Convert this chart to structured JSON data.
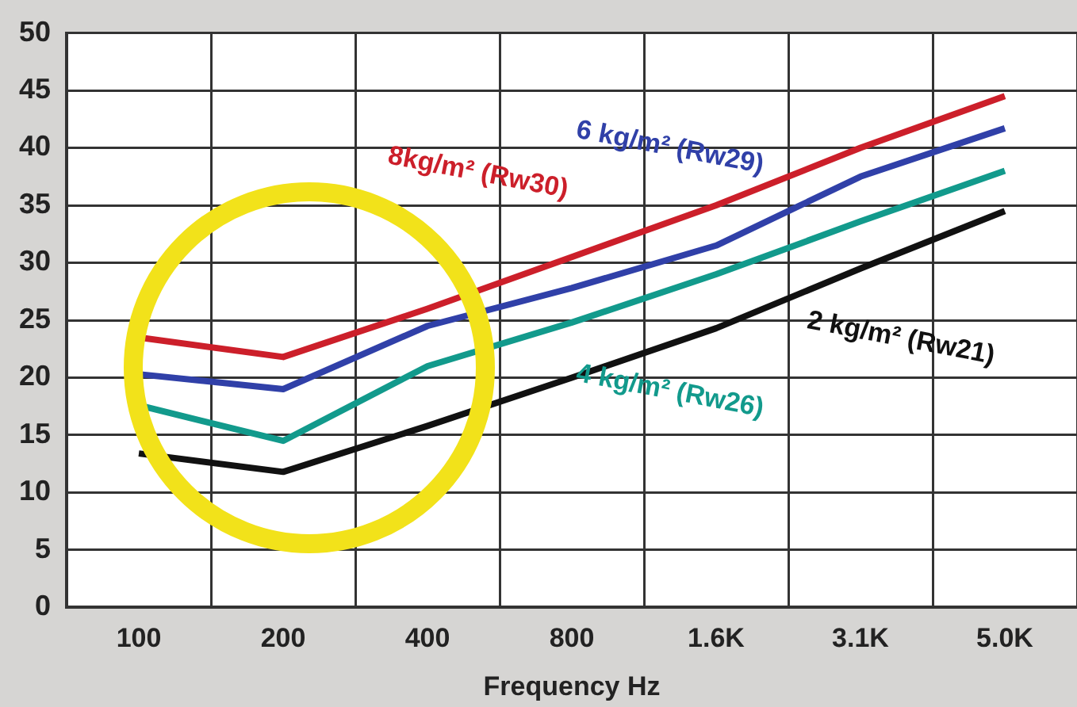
{
  "chart_data": {
    "type": "line",
    "xlabel": "Frequency Hz",
    "categories": [
      "100",
      "200",
      "400",
      "800",
      "1.6K",
      "3.1K",
      "5.0K"
    ],
    "ylim": [
      0,
      50
    ],
    "yticks": [
      0,
      5,
      10,
      15,
      20,
      25,
      30,
      35,
      40,
      45,
      50
    ],
    "grid": true,
    "legend": false,
    "marker": "none",
    "line_style": "solid",
    "series": [
      {
        "name": "2 kg/m² (Rw21)",
        "color": "#111111",
        "values": [
          13.4,
          11.8,
          15.8,
          20,
          24.3,
          29.5,
          34.5
        ]
      },
      {
        "name": "4 kg/m² (Rw26)",
        "color": "#129a8c",
        "values": [
          17.6,
          14.5,
          21,
          24.8,
          29,
          33.6,
          38
        ]
      },
      {
        "name": "6 kg/m² (Rw29)",
        "color": "#3040a8",
        "values": [
          20.3,
          19,
          24.5,
          27.8,
          31.5,
          37.5,
          41.7
        ]
      },
      {
        "name": "8kg/m² (Rw30)",
        "color": "#cc1f2a",
        "values": [
          23.5,
          21.8,
          26,
          30.5,
          35,
          40,
          44.5
        ]
      }
    ]
  }
}
